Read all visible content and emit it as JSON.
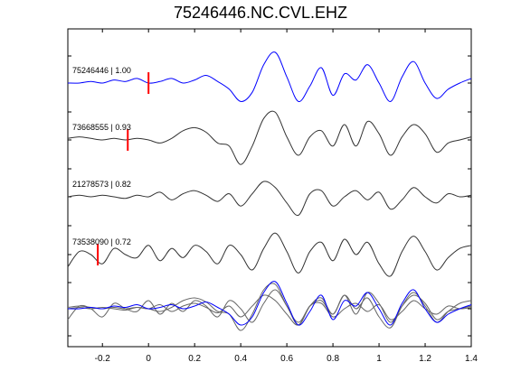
{
  "chart_data": {
    "type": "line",
    "title": "75246446.NC.CVL.EHZ",
    "xlabel": "",
    "ylabel": "",
    "xlim": [
      -0.35,
      1.4
    ],
    "x_ticks": [
      -0.2,
      0,
      0.2,
      0.4,
      0.6,
      0.8,
      1,
      1.2,
      1.4
    ],
    "x_tick_labels": [
      "-0.2",
      "0",
      "0.2",
      "0.4",
      "0.6",
      "0.8",
      "1",
      "1.2",
      "1.4"
    ],
    "grid": false,
    "traces": [
      {
        "label": "75246446 | 1.00",
        "color": "#0000ff",
        "pick_time": 0.0,
        "x": [
          -0.35,
          -0.3,
          -0.25,
          -0.2,
          -0.15,
          -0.1,
          -0.05,
          0.0,
          0.05,
          0.1,
          0.15,
          0.2,
          0.25,
          0.3,
          0.35,
          0.4,
          0.45,
          0.5,
          0.55,
          0.6,
          0.65,
          0.7,
          0.75,
          0.8,
          0.85,
          0.9,
          0.95,
          1.0,
          1.05,
          1.1,
          1.15,
          1.2,
          1.25,
          1.3,
          1.35,
          1.4
        ],
        "y": [
          0.0,
          0.0,
          0.05,
          0.0,
          0.1,
          0.05,
          0.15,
          0.0,
          0.05,
          0.15,
          0.0,
          0.1,
          0.25,
          0.05,
          -0.2,
          -0.6,
          -0.3,
          0.6,
          1.0,
          0.2,
          -0.6,
          -0.1,
          0.5,
          -0.4,
          0.3,
          0.1,
          0.6,
          0.0,
          -0.6,
          0.2,
          0.7,
          0.0,
          -0.5,
          -0.2,
          0.0,
          0.15
        ]
      },
      {
        "label": "73668555 | 0.93",
        "color": "#333333",
        "pick_time": -0.09,
        "x": [
          -0.35,
          -0.3,
          -0.25,
          -0.2,
          -0.15,
          -0.1,
          -0.05,
          0.0,
          0.05,
          0.1,
          0.15,
          0.2,
          0.25,
          0.3,
          0.35,
          0.4,
          0.45,
          0.5,
          0.55,
          0.6,
          0.65,
          0.7,
          0.75,
          0.8,
          0.85,
          0.9,
          0.95,
          1.0,
          1.05,
          1.1,
          1.15,
          1.2,
          1.25,
          1.3,
          1.35,
          1.4
        ],
        "y": [
          0.05,
          0.1,
          0.05,
          0.0,
          0.05,
          0.0,
          0.05,
          0.0,
          -0.1,
          0.05,
          0.3,
          0.4,
          0.25,
          -0.1,
          -0.2,
          -0.8,
          -0.2,
          0.7,
          0.9,
          0.1,
          -0.5,
          0.1,
          0.3,
          -0.2,
          0.5,
          -0.2,
          0.6,
          0.2,
          -0.5,
          0.1,
          0.5,
          0.2,
          -0.4,
          -0.1,
          0.0,
          0.1
        ]
      },
      {
        "label": "21278573 | 0.82",
        "color": "#333333",
        "pick_time": null,
        "x": [
          -0.35,
          -0.3,
          -0.25,
          -0.2,
          -0.15,
          -0.1,
          -0.05,
          0.0,
          0.05,
          0.1,
          0.15,
          0.2,
          0.25,
          0.3,
          0.35,
          0.4,
          0.45,
          0.5,
          0.55,
          0.6,
          0.65,
          0.7,
          0.75,
          0.8,
          0.85,
          0.9,
          0.95,
          1.0,
          1.05,
          1.1,
          1.15,
          1.2,
          1.25,
          1.3,
          1.35,
          1.4
        ],
        "y": [
          0.0,
          0.05,
          0.0,
          0.05,
          0.0,
          -0.05,
          0.05,
          0.0,
          0.15,
          -0.1,
          0.1,
          0.2,
          0.05,
          -0.15,
          0.1,
          -0.3,
          0.1,
          0.5,
          0.3,
          -0.2,
          -0.6,
          0.1,
          0.2,
          -0.3,
          0.0,
          0.2,
          -0.1,
          0.15,
          -0.4,
          -0.1,
          0.3,
          0.0,
          -0.2,
          0.1,
          0.0,
          0.05
        ]
      },
      {
        "label": "73538090 | 0.72",
        "color": "#333333",
        "pick_time": -0.22,
        "x": [
          -0.35,
          -0.3,
          -0.25,
          -0.2,
          -0.15,
          -0.1,
          -0.05,
          0.0,
          0.05,
          0.1,
          0.15,
          0.2,
          0.25,
          0.3,
          0.35,
          0.4,
          0.45,
          0.5,
          0.55,
          0.6,
          0.65,
          0.7,
          0.75,
          0.8,
          0.85,
          0.9,
          0.95,
          1.0,
          1.05,
          1.1,
          1.15,
          1.2,
          1.25,
          1.3,
          1.35,
          1.4
        ],
        "y": [
          -0.4,
          0.1,
          0.0,
          -0.3,
          0.2,
          0.0,
          -0.1,
          0.3,
          -0.2,
          0.2,
          -0.1,
          0.3,
          0.1,
          -0.3,
          0.3,
          0.0,
          -0.5,
          0.2,
          0.7,
          0.1,
          -0.6,
          0.1,
          0.4,
          -0.2,
          0.5,
          0.0,
          0.4,
          -0.3,
          -0.7,
          0.1,
          0.6,
          0.1,
          -0.5,
          -0.1,
          0.2,
          0.3
        ]
      }
    ]
  }
}
